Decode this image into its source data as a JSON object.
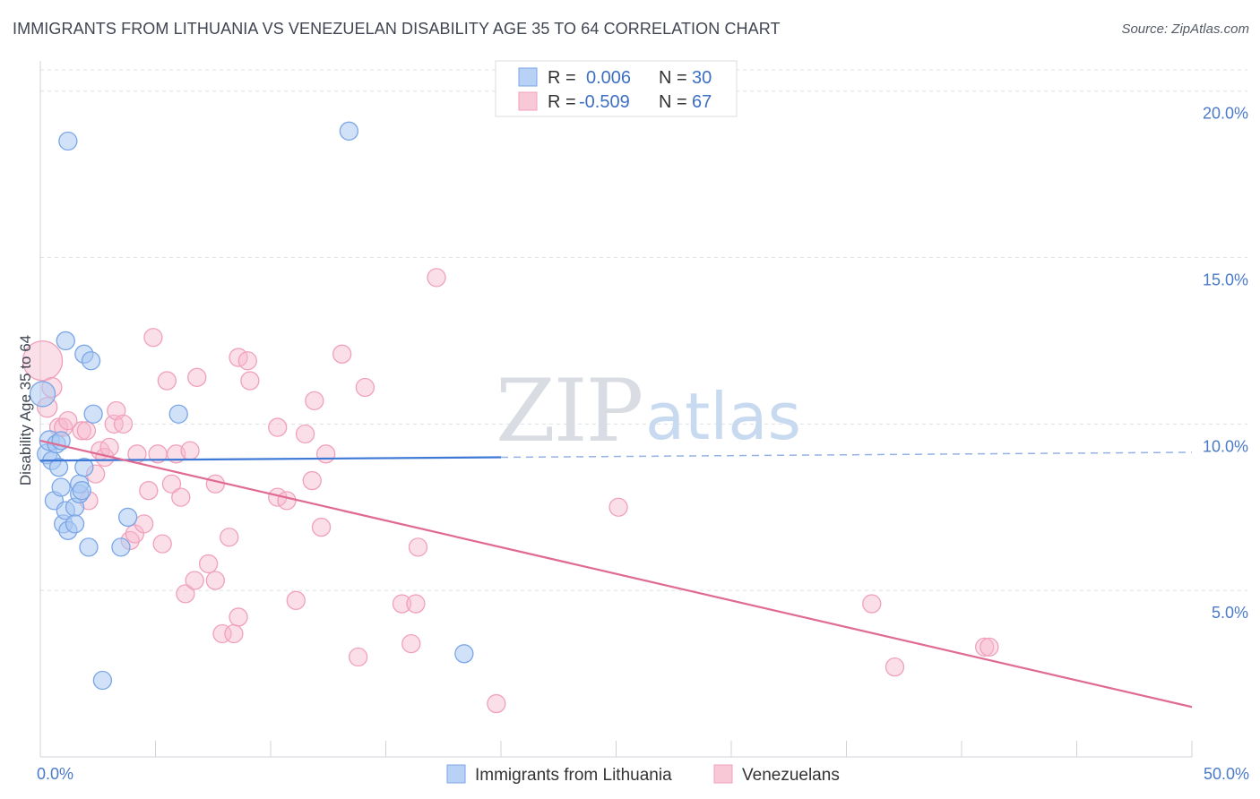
{
  "title": "IMMIGRANTS FROM LITHUANIA VS VENEZUELAN DISABILITY AGE 35 TO 64 CORRELATION CHART",
  "source": "Source: ZipAtlas.com",
  "watermark": {
    "zip": "ZIP",
    "atlas": "atlas"
  },
  "colors": {
    "blue": "#7aa6e6",
    "blue_line": "#3d78d6",
    "pink": "#f0a0bb",
    "pink_line": "#e06a92",
    "tick": "#4a7ac8"
  },
  "legend": {
    "rows": [
      {
        "r_label": "R =",
        "r_value": "0.006",
        "n_label": "N =",
        "n_value": "30"
      },
      {
        "r_label": "R =",
        "r_value": "-0.509",
        "n_label": "N =",
        "n_value": "67"
      }
    ]
  },
  "bottom_legend": [
    "Immigrants from Lithuania",
    "Venezuelans"
  ],
  "chart_data": {
    "type": "scatter",
    "ylabel": "Disability Age 35 to 64",
    "xlim": [
      0,
      50
    ],
    "ylim": [
      0,
      20.8
    ],
    "x_tick_labels": [
      {
        "value": 0,
        "label": "0.0%"
      },
      {
        "value": 50,
        "label": "50.0%"
      }
    ],
    "y_tick_labels": [
      {
        "value": 5,
        "label": "5.0%"
      },
      {
        "value": 10,
        "label": "10.0%"
      },
      {
        "value": 15,
        "label": "15.0%"
      },
      {
        "value": 20,
        "label": "20.0%"
      }
    ],
    "grid": "horizontal dashed",
    "series": [
      {
        "name": "Immigrants from Lithuania",
        "color": "#7aa6e6",
        "trend": {
          "x": [
            0,
            20
          ],
          "y": [
            8.9,
            9.0
          ],
          "dashed_extension_to": [
            50,
            9.15
          ]
        },
        "points": [
          [
            0.1,
            10.9,
            14
          ],
          [
            0.3,
            9.1,
            11
          ],
          [
            0.4,
            9.5,
            11
          ],
          [
            0.5,
            8.9,
            10
          ],
          [
            0.6,
            7.7,
            10
          ],
          [
            0.7,
            9.4,
            10
          ],
          [
            0.8,
            8.7,
            10
          ],
          [
            0.9,
            9.5,
            10
          ],
          [
            0.9,
            8.1,
            10
          ],
          [
            1.0,
            7.0,
            10
          ],
          [
            1.1,
            7.4,
            10
          ],
          [
            1.1,
            12.5,
            10
          ],
          [
            1.2,
            6.8,
            10
          ],
          [
            1.2,
            18.5,
            10
          ],
          [
            1.5,
            7.5,
            10
          ],
          [
            1.5,
            7.0,
            10
          ],
          [
            1.7,
            7.9,
            10
          ],
          [
            1.7,
            8.2,
            10
          ],
          [
            1.8,
            8.0,
            10
          ],
          [
            1.9,
            8.7,
            10
          ],
          [
            1.9,
            12.1,
            10
          ],
          [
            2.1,
            6.3,
            10
          ],
          [
            2.2,
            11.9,
            10
          ],
          [
            2.3,
            10.3,
            10
          ],
          [
            2.7,
            2.3,
            10
          ],
          [
            3.5,
            6.3,
            10
          ],
          [
            3.8,
            7.2,
            10
          ],
          [
            6.0,
            10.3,
            10
          ],
          [
            13.4,
            18.8,
            10
          ],
          [
            18.4,
            3.1,
            10
          ]
        ]
      },
      {
        "name": "Venezuelans",
        "color": "#f0a0bb",
        "trend": {
          "x": [
            0,
            50
          ],
          "y": [
            9.5,
            1.5
          ]
        },
        "points": [
          [
            0.1,
            11.9,
            22
          ],
          [
            0.3,
            10.5,
            11
          ],
          [
            0.5,
            11.1,
            11
          ],
          [
            0.8,
            9.9,
            10
          ],
          [
            1.0,
            9.9,
            10
          ],
          [
            1.2,
            10.1,
            10
          ],
          [
            1.8,
            9.8,
            10
          ],
          [
            2.0,
            9.8,
            10
          ],
          [
            2.1,
            7.7,
            10
          ],
          [
            2.4,
            8.5,
            10
          ],
          [
            2.6,
            9.2,
            10
          ],
          [
            2.8,
            9.0,
            10
          ],
          [
            3.0,
            9.3,
            10
          ],
          [
            3.2,
            10.0,
            10
          ],
          [
            3.3,
            10.4,
            10
          ],
          [
            3.6,
            10.0,
            10
          ],
          [
            3.9,
            6.5,
            10
          ],
          [
            4.1,
            6.7,
            10
          ],
          [
            4.2,
            9.1,
            10
          ],
          [
            4.5,
            7.0,
            10
          ],
          [
            4.7,
            8.0,
            10
          ],
          [
            4.9,
            12.6,
            10
          ],
          [
            5.1,
            9.1,
            10
          ],
          [
            5.3,
            6.4,
            10
          ],
          [
            5.5,
            11.3,
            10
          ],
          [
            5.7,
            8.2,
            10
          ],
          [
            5.9,
            9.1,
            10
          ],
          [
            6.1,
            7.8,
            10
          ],
          [
            6.3,
            4.9,
            10
          ],
          [
            6.5,
            9.2,
            10
          ],
          [
            6.7,
            5.3,
            10
          ],
          [
            6.8,
            11.4,
            10
          ],
          [
            7.3,
            5.8,
            10
          ],
          [
            7.6,
            8.2,
            10
          ],
          [
            7.6,
            5.3,
            10
          ],
          [
            7.9,
            3.7,
            10
          ],
          [
            8.2,
            6.6,
            10
          ],
          [
            8.4,
            3.7,
            10
          ],
          [
            8.6,
            4.2,
            10
          ],
          [
            8.6,
            12.0,
            10
          ],
          [
            9.0,
            11.9,
            10
          ],
          [
            9.1,
            11.3,
            10
          ],
          [
            10.3,
            9.9,
            10
          ],
          [
            10.3,
            7.8,
            10
          ],
          [
            10.7,
            7.7,
            10
          ],
          [
            11.1,
            4.7,
            10
          ],
          [
            11.5,
            9.7,
            10
          ],
          [
            11.8,
            8.3,
            10
          ],
          [
            11.9,
            10.7,
            10
          ],
          [
            12.2,
            6.9,
            10
          ],
          [
            12.4,
            9.1,
            10
          ],
          [
            13.1,
            12.1,
            10
          ],
          [
            13.8,
            3.0,
            10
          ],
          [
            14.1,
            11.1,
            10
          ],
          [
            15.7,
            4.6,
            10
          ],
          [
            16.1,
            3.4,
            10
          ],
          [
            16.4,
            6.3,
            10
          ],
          [
            16.3,
            4.6,
            10
          ],
          [
            17.2,
            14.4,
            10
          ],
          [
            19.8,
            1.6,
            10
          ],
          [
            25.1,
            7.5,
            10
          ],
          [
            36.1,
            4.6,
            10
          ],
          [
            37.1,
            2.7,
            10
          ],
          [
            41.0,
            3.3,
            10
          ],
          [
            41.2,
            3.3,
            10
          ],
          [
            37.0,
            2.7,
            0
          ],
          [
            0.2,
            11.8,
            0
          ]
        ]
      }
    ]
  }
}
